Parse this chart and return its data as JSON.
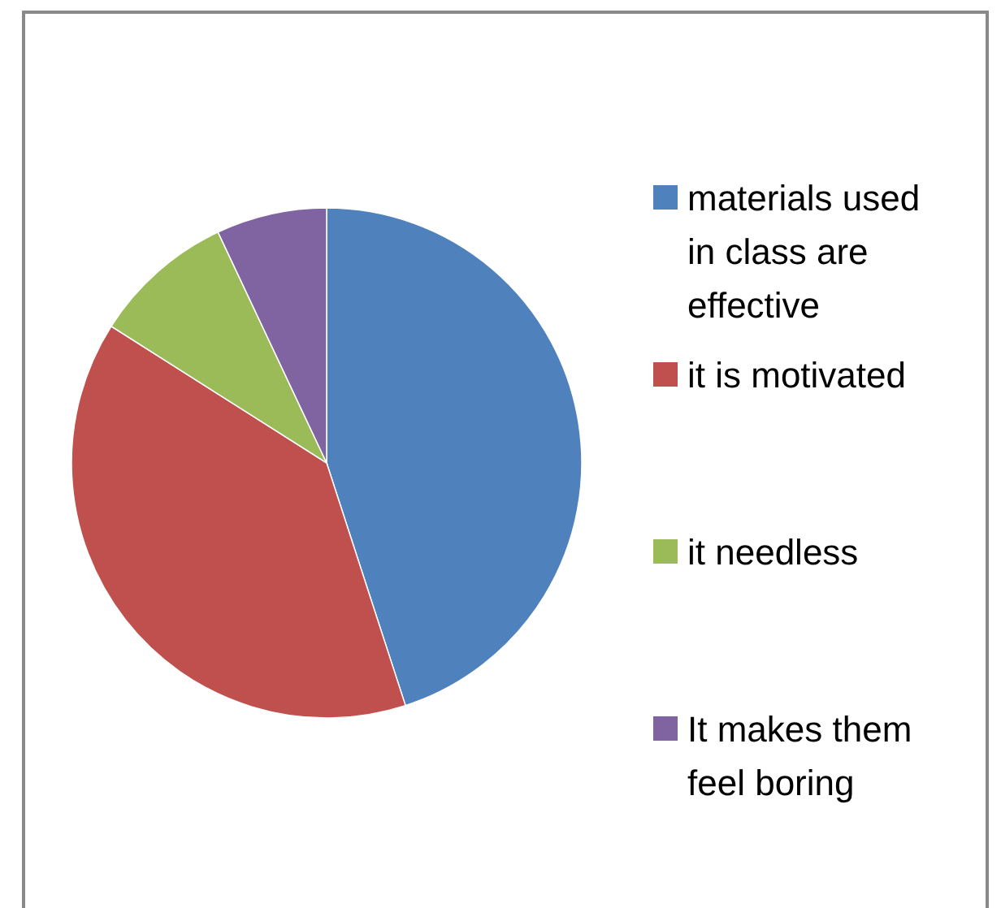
{
  "chart_data": {
    "type": "pie",
    "categories": [
      "materials used in class are effective",
      "it is motivated",
      "it needless",
      "It makes them feel boring"
    ],
    "values": [
      45,
      39,
      9,
      7
    ],
    "colors": [
      "#4f81bd",
      "#c0504d",
      "#9bbb59",
      "#8064a2"
    ],
    "legend": "right"
  }
}
